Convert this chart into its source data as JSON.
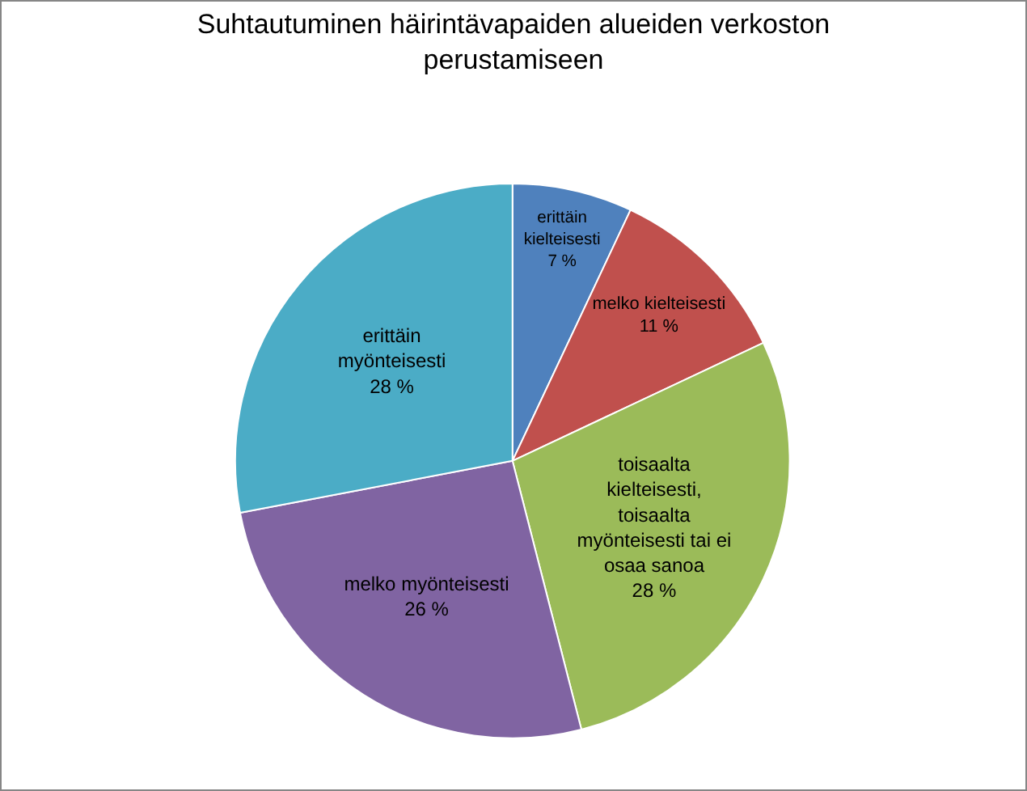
{
  "chart_data": {
    "type": "pie",
    "title": "Suhtautuminen häirintävapaiden alueiden verkoston perustamiseen",
    "categories": [
      "erittäin kielteisesti",
      "melko kielteisesti",
      "toisaalta kielteisesti, toisaalta myönteisesti tai ei osaa sanoa",
      "melko myönteisesti",
      "erittäin myönteisesti"
    ],
    "values": [
      7,
      11,
      28,
      26,
      28
    ],
    "value_labels": [
      "7 %",
      "11 %",
      "28 %",
      "26 %",
      "28 %"
    ],
    "colors": [
      "#4f81bd",
      "#c0504d",
      "#9bbb59",
      "#8064a2",
      "#4bacc6"
    ],
    "legend": false
  }
}
